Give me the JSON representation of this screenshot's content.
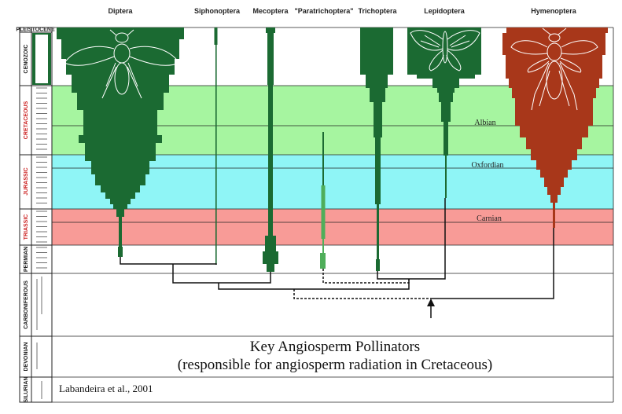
{
  "clades": [
    "Diptera",
    "Siphonoptera",
    "Mecoptera",
    "\"Paratrichoptera\"",
    "Trichoptera",
    "Lepidoptera",
    "Hymenoptera"
  ],
  "periods": [
    "PLEISTOCENE",
    "CENOZOIC",
    "CRETACEOUS",
    "JURASSIC",
    "TRIASSIC",
    "PERMIAN",
    "CARBONIFEROUS",
    "DEVONIAN",
    "SILURIAN"
  ],
  "stages": [
    "Albian",
    "Oxfordian",
    "Carnian"
  ],
  "caption_line1": "Key Angiosperm Pollinators",
  "caption_line2": "(responsible for angiosperm radiation in Cretaceous)",
  "credit": "Labandeira et al., 2001",
  "colors": {
    "insect_green": "#1b6a32",
    "paratrichoptera_green": "#4fae5a",
    "hymenoptera_brown": "#a8371a",
    "cretaceous_band": "#a6f5a0",
    "jurassic_band": "#8ff5f6",
    "triassic_band": "#f89b97"
  }
}
